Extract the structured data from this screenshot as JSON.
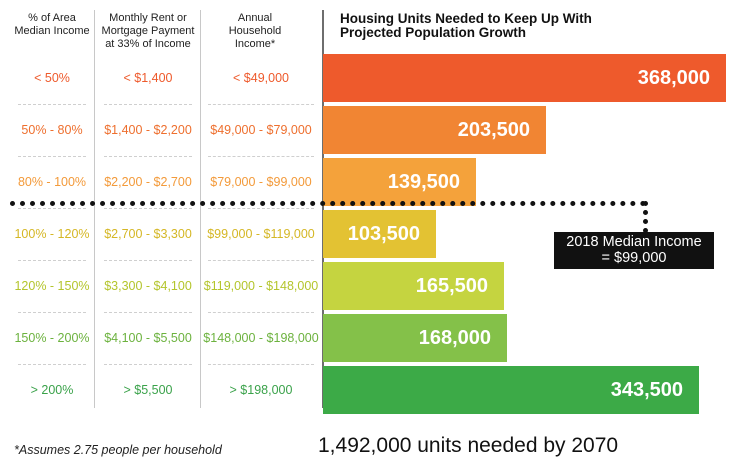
{
  "chart_data": {
    "type": "bar",
    "orientation": "horizontal",
    "title": "Housing Units Needed to Keep Up With Projected Population Growth",
    "columns": [
      "% of Area Median Income",
      "Monthly Rent or Mortgage Payment at 33% of Income",
      "Annual Household Income*"
    ],
    "rows": [
      {
        "ami": "< 50%",
        "rent": "< $1,400",
        "income": "< $49,000",
        "value": 368000,
        "label": "368,000",
        "color": "#ee5a2c"
      },
      {
        "ami": "50% - 80%",
        "rent": "$1,400 - $2,200",
        "income": "$49,000 - $79,000",
        "value": 203500,
        "label": "203,500",
        "color": "#f18533"
      },
      {
        "ami": "80% - 100%",
        "rent": "$2,200 - $2,700",
        "income": "$79,000 - $99,000",
        "value": 139500,
        "label": "139,500",
        "color": "#f4a23b"
      },
      {
        "ami": "100% - 120%",
        "rent": "$2,700 - $3,300",
        "income": "$99,000 - $119,000",
        "value": 103500,
        "label": "103,500",
        "color": "#e3c233"
      },
      {
        "ami": "120% - 150%",
        "rent": "$3,300 - $4,100",
        "income": "$119,000 - $148,000",
        "value": 165500,
        "label": "165,500",
        "color": "#c5d440"
      },
      {
        "ami": "150% - 200%",
        "rent": "$4,100 - $5,500",
        "income": "$148,000 - $198,000",
        "value": 168000,
        "label": "168,000",
        "color": "#84c149"
      },
      {
        "ami": "> 200%",
        "rent": "> $5,500",
        "income": "> $198,000",
        "value": 343500,
        "label": "343,500",
        "color": "#3caa47"
      }
    ],
    "text_colors": [
      "#ee5a2c",
      "#ee6f2e",
      "#f39a3a",
      "#d5b725",
      "#b4c52c",
      "#6cb23e",
      "#3aa24a"
    ],
    "median_annotation": "2018 Median Income = $99,000",
    "median_line_1": "2018 Median Income",
    "median_line_2": "= $99,000",
    "footnote": "*Assumes 2.75 people per household",
    "total": "1,492,000 units needed by 2070",
    "legend": "none",
    "grid": false
  }
}
